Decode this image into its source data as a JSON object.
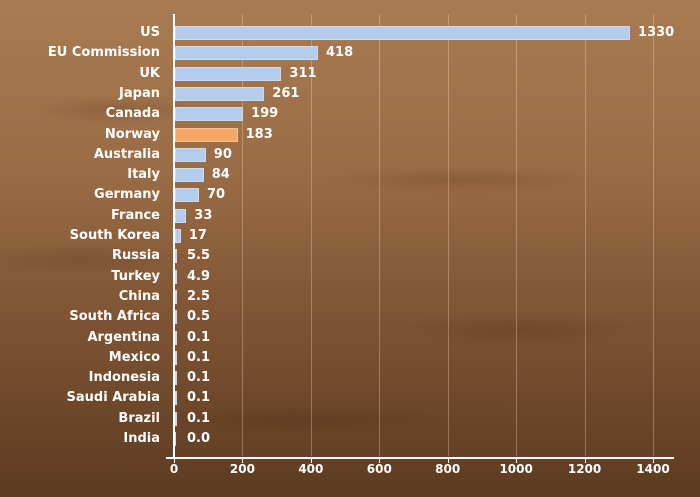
{
  "chart_data": {
    "type": "bar",
    "orientation": "horizontal",
    "title": "",
    "xlabel": "",
    "ylabel": "",
    "xlim": [
      0,
      1400
    ],
    "xticks": [
      0,
      200,
      400,
      600,
      800,
      1000,
      1200,
      1400
    ],
    "grid": true,
    "categories": [
      "US",
      "EU Commission",
      "UK",
      "Japan",
      "Canada",
      "Norway",
      "Australia",
      "Italy",
      "Germany",
      "France",
      "South Korea",
      "Russia",
      "Turkey",
      "China",
      "South Africa",
      "Argentina",
      "Mexico",
      "Indonesia",
      "Saudi Arabia",
      "Brazil",
      "India"
    ],
    "values": [
      1330,
      418,
      311,
      261,
      199,
      183,
      90,
      84,
      70,
      33,
      17,
      5.5,
      4.9,
      2.5,
      0.5,
      0.1,
      0.1,
      0.1,
      0.1,
      0.1,
      0.0
    ],
    "value_labels": [
      "1330",
      "418",
      "311",
      "261",
      "199",
      "183",
      "90",
      "84",
      "70",
      "33",
      "17",
      "5.5",
      "4.9",
      "2.5",
      "0.5",
      "0.1",
      "0.1",
      "0.1",
      "0.1",
      "0.1",
      "0.0"
    ],
    "highlight": "Norway",
    "colors": {
      "bar": "#b5cdec",
      "highlight": "#f4a766",
      "text": "#ffffff"
    }
  }
}
